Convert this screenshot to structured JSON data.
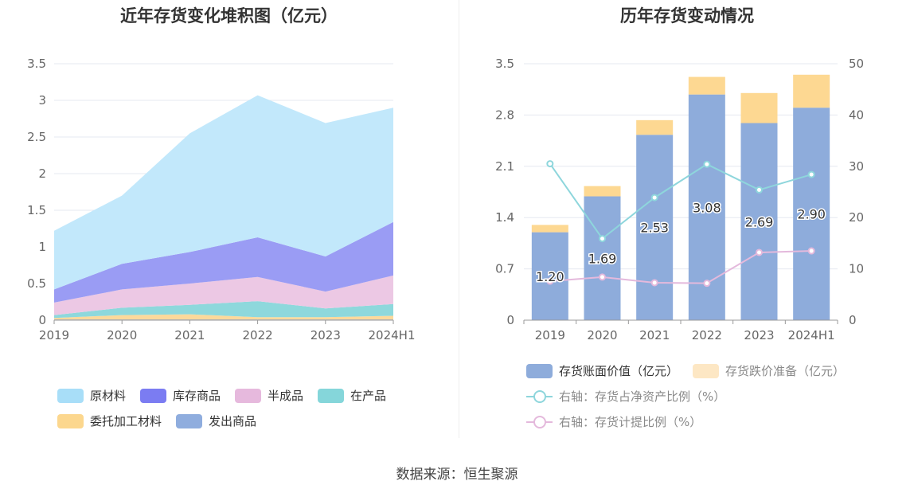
{
  "left_title": "近年存货变化堆积图（亿元）",
  "right_title": "历年存货变动情况",
  "source_label": "数据来源：恒生聚源",
  "chart_data": [
    {
      "type": "area",
      "stacked": true,
      "title": "近年存货变化堆积图（亿元）",
      "categories": [
        "2019",
        "2020",
        "2021",
        "2022",
        "2023",
        "2024H1"
      ],
      "y_ticks": [
        "0",
        "0.5",
        "1",
        "1.5",
        "2",
        "2.5",
        "3",
        "3.5"
      ],
      "ylim": [
        0,
        3.5
      ],
      "grid": true,
      "legend_position": "bottom",
      "series": [
        {
          "name": "发出商品",
          "color": "#8eacdc",
          "values": [
            0.01,
            0.01,
            0.01,
            0.01,
            0.01,
            0.01
          ]
        },
        {
          "name": "委托加工材料",
          "color": "#fcd99b",
          "values": [
            0.02,
            0.06,
            0.07,
            0.03,
            0.03,
            0.05
          ]
        },
        {
          "name": "在产品",
          "color": "#8ed8dc",
          "values": [
            0.04,
            0.1,
            0.13,
            0.22,
            0.12,
            0.16
          ]
        },
        {
          "name": "半成品",
          "color": "#ecc8e4",
          "values": [
            0.17,
            0.25,
            0.29,
            0.33,
            0.23,
            0.39
          ]
        },
        {
          "name": "库存商品",
          "color": "#9a9cf4",
          "values": [
            0.18,
            0.35,
            0.43,
            0.54,
            0.48,
            0.73
          ]
        },
        {
          "name": "原材料",
          "color": "#c2e8fb",
          "values": [
            0.8,
            0.93,
            1.62,
            1.94,
            1.82,
            1.56
          ]
        }
      ],
      "legend_order": [
        "原材料",
        "库存商品",
        "半成品",
        "在产品",
        "委托加工材料",
        "发出商品"
      ],
      "legend_colors": [
        "#a8def8",
        "#7b7cf2",
        "#e6b9dd",
        "#85d6da",
        "#fcd78e",
        "#8fadde"
      ]
    },
    {
      "type": "bar",
      "stacked": true,
      "title": "历年存货变动情况",
      "categories": [
        "2019",
        "2020",
        "2021",
        "2022",
        "2023",
        "2024H1"
      ],
      "y_left_ticks": [
        "0",
        "0.7",
        "1.4",
        "2.1",
        "2.8",
        "3.5"
      ],
      "ylim_left": [
        0,
        3.5
      ],
      "y_right_ticks": [
        "0",
        "10",
        "20",
        "30",
        "40",
        "50"
      ],
      "ylim_right": [
        0,
        50
      ],
      "grid": true,
      "legend_position": "bottom",
      "series": [
        {
          "name": "存货账面价值（亿元）",
          "color": "#8eacdb",
          "axis": "left",
          "values": [
            1.2,
            1.69,
            2.53,
            3.08,
            2.69,
            2.9
          ],
          "labels": [
            "1.20",
            "1.69",
            "2.53",
            "3.08",
            "2.69",
            "2.90"
          ]
        },
        {
          "name": "存货跌价准备（亿元）",
          "color": "#fdd892",
          "axis": "left",
          "values": [
            0.1,
            0.14,
            0.2,
            0.24,
            0.41,
            0.45
          ]
        },
        {
          "name": "右轴：存货占净资产比例（%）",
          "color": "#8ed6dc",
          "axis": "right",
          "type": "line",
          "values": [
            30.5,
            15.9,
            23.9,
            30.4,
            25.4,
            28.4
          ]
        },
        {
          "name": "右轴：存货计提比例（%）",
          "color": "#e4b9dc",
          "axis": "right",
          "type": "line",
          "values": [
            7.6,
            8.4,
            7.3,
            7.2,
            13.2,
            13.5
          ]
        }
      ]
    }
  ]
}
